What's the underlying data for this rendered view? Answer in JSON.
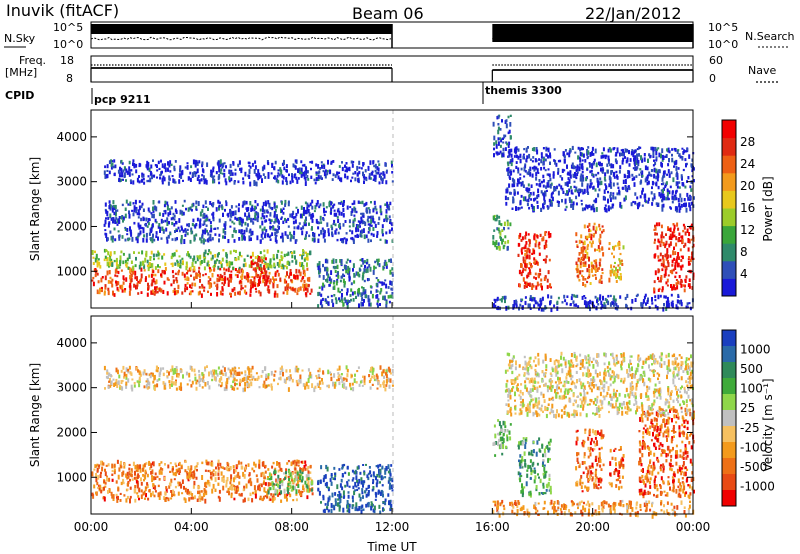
{
  "header": {
    "station": "Inuvik (fitACF)",
    "beam": "Beam 06",
    "date": "22/Jan/2012"
  },
  "noise_panel": {
    "left_label": "N.Sky",
    "right_label": "N.Search",
    "left_ticks": [
      "10^5",
      "10^0"
    ],
    "right_ticks": [
      "10^5",
      "10^0"
    ]
  },
  "freq_panel": {
    "left_label_1": "Freq.",
    "left_label_2": "[MHz]",
    "right_label": "Nave",
    "left_ticks": [
      "18",
      "8"
    ],
    "right_ticks": [
      "60",
      "0"
    ]
  },
  "cpid": {
    "label": "CPID",
    "modes": [
      {
        "name": "pcp 9211",
        "start_hour": 0,
        "end_hour": 12
      },
      {
        "name": "themis 3300",
        "start_hour": 16,
        "end_hour": 24
      }
    ]
  },
  "chart_data": [
    {
      "type": "heatmap",
      "name": "power",
      "ylabel": "Slant Range [km]",
      "xlim": [
        0,
        24
      ],
      "ylim": [
        180,
        4600
      ],
      "yticks": [
        "1000",
        "2000",
        "3000",
        "4000"
      ],
      "colorbar": {
        "label": "Power [dB]",
        "ticks": [
          "4",
          "8",
          "12",
          "16",
          "20",
          "24",
          "28"
        ],
        "colors": [
          "#1a1ad8",
          "#2f4fb8",
          "#2f8a6a",
          "#3aa63a",
          "#9ccc2a",
          "#e8c81c",
          "#f39a1c",
          "#ee6014",
          "#e02a12",
          "#f20000"
        ]
      },
      "data_gap_hours": [
        12,
        16
      ],
      "echo_regions": [
        {
          "t0": 0.0,
          "t1": 8.8,
          "r0": 500,
          "r1": 1100,
          "level": 0.82
        },
        {
          "t0": 0.0,
          "t1": 8.8,
          "r0": 1100,
          "r1": 1500,
          "level": 0.4
        },
        {
          "t0": 6.3,
          "t1": 7.0,
          "r0": 700,
          "r1": 1350,
          "level": 0.95
        },
        {
          "t0": 0.5,
          "t1": 12.0,
          "r0": 3000,
          "r1": 3500,
          "level": 0.05
        },
        {
          "t0": 0.5,
          "t1": 12.0,
          "r0": 1700,
          "r1": 2600,
          "level": 0.1
        },
        {
          "t0": 9.0,
          "t1": 12.0,
          "r0": 250,
          "r1": 1300,
          "level": 0.2
        },
        {
          "t0": 16.0,
          "t1": 24.0,
          "r0": 180,
          "r1": 500,
          "level": 0.05
        },
        {
          "t0": 16.0,
          "t1": 16.7,
          "r0": 1500,
          "r1": 2300,
          "level": 0.3
        },
        {
          "t0": 16.0,
          "t1": 16.7,
          "r0": 3600,
          "r1": 4500,
          "level": 0.1
        },
        {
          "t0": 17.0,
          "t1": 18.3,
          "r0": 650,
          "r1": 1900,
          "level": 0.85
        },
        {
          "t0": 19.3,
          "t1": 20.4,
          "r0": 700,
          "r1": 2100,
          "level": 0.75
        },
        {
          "t0": 20.6,
          "t1": 21.2,
          "r0": 800,
          "r1": 1700,
          "level": 0.6
        },
        {
          "t0": 22.4,
          "t1": 24.0,
          "r0": 600,
          "r1": 2100,
          "level": 0.9
        },
        {
          "t0": 16.5,
          "t1": 24.0,
          "r0": 2400,
          "r1": 3800,
          "level": 0.05
        }
      ]
    },
    {
      "type": "heatmap",
      "name": "velocity",
      "ylabel": "Slant Range [km]",
      "xlabel": "Time UT",
      "xlim": [
        0,
        24
      ],
      "ylim": [
        180,
        4600
      ],
      "xticks": [
        "00:00",
        "04:00",
        "08:00",
        "12:00",
        "16:00",
        "20:00",
        "00:00"
      ],
      "yticks": [
        "1000",
        "2000",
        "3000",
        "4000"
      ],
      "colorbar": {
        "label": "Velocity [m s⁻¹]",
        "ticks": [
          "1000",
          "500",
          "100",
          "25",
          "-25",
          "-100",
          "-500",
          "-1000"
        ],
        "colors": [
          "#1a3fbf",
          "#2a6aa8",
          "#2f8a5a",
          "#3faa3a",
          "#8fd64a",
          "#c0c0c0",
          "#f6c060",
          "#f39a1c",
          "#ee7016",
          "#e84a14",
          "#f00000"
        ]
      },
      "data_gap_hours": [
        12,
        16
      ],
      "echo_regions": [
        {
          "t0": 0.0,
          "t1": 8.8,
          "r0": 500,
          "r1": 1400,
          "level": 0.75
        },
        {
          "t0": 7.0,
          "t1": 8.8,
          "r0": 700,
          "r1": 1200,
          "level": 0.35
        },
        {
          "t0": 0.5,
          "t1": 12.0,
          "r0": 3000,
          "r1": 3500,
          "level": 0.6
        },
        {
          "t0": 9.0,
          "t1": 12.0,
          "r0": 250,
          "r1": 1300,
          "level": 0.1
        },
        {
          "t0": 16.0,
          "t1": 24.0,
          "r0": 180,
          "r1": 500,
          "level": 0.7
        },
        {
          "t0": 16.0,
          "t1": 16.7,
          "r0": 1500,
          "r1": 2300,
          "level": 0.35
        },
        {
          "t0": 17.0,
          "t1": 18.3,
          "r0": 650,
          "r1": 1900,
          "level": 0.3
        },
        {
          "t0": 19.3,
          "t1": 20.4,
          "r0": 700,
          "r1": 2100,
          "level": 0.78
        },
        {
          "t0": 20.6,
          "t1": 21.2,
          "r0": 800,
          "r1": 1700,
          "level": 0.8
        },
        {
          "t0": 21.8,
          "t1": 24.0,
          "r0": 600,
          "r1": 2600,
          "level": 0.82
        },
        {
          "t0": 16.5,
          "t1": 24.0,
          "r0": 2400,
          "r1": 3800,
          "level": 0.55
        }
      ]
    }
  ]
}
